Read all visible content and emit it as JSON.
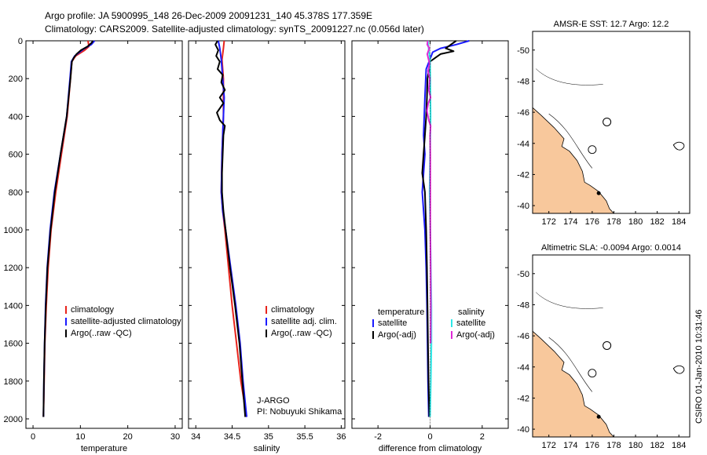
{
  "header": {
    "line1": "Argo profile: JA 5900995_148 26-Dec-2009 20091231_140 45.378S 177.359E",
    "line2": "Climatology: CARS2009. Satellite-adjusted climatology: synTS_20091227.nc (0.056d later)"
  },
  "colors": {
    "clim": "#e8241c",
    "sat": "#1a1aff",
    "argo": "#000000",
    "sat_diff": "#2ee8e8",
    "argo_diff": "#e02ad8"
  },
  "chart_data": [
    {
      "type": "line",
      "id": "temperature",
      "xlabel": "temperature",
      "xlim": [
        -1.5,
        31.5
      ],
      "ylim": [
        0,
        2050
      ],
      "xticks": [
        "0",
        "10",
        "20",
        "30"
      ],
      "xtick_values": [
        0,
        10,
        20,
        30
      ],
      "yticks": [
        "0",
        "200",
        "400",
        "600",
        "800",
        "1000",
        "1200",
        "1400",
        "1600",
        "1800",
        "2000"
      ],
      "ytick_values": [
        0,
        200,
        400,
        600,
        800,
        1000,
        1200,
        1400,
        1600,
        1800,
        2000
      ],
      "legend": [
        "climatology",
        "satellite-adjusted climatology",
        "Argo(..raw -QC)"
      ],
      "series": [
        {
          "name": "climatology",
          "color": "clim",
          "points": [
            [
              11.6,
              0
            ],
            [
              11.8,
              30
            ],
            [
              10.9,
              50
            ],
            [
              9.0,
              80
            ],
            [
              8.2,
              110
            ],
            [
              7.9,
              200
            ],
            [
              7.2,
              400
            ],
            [
              6.0,
              600
            ],
            [
              4.8,
              800
            ],
            [
              3.8,
              1000
            ],
            [
              3.2,
              1200
            ],
            [
              2.8,
              1400
            ],
            [
              2.5,
              1600
            ],
            [
              2.35,
              1800
            ],
            [
              2.2,
              1990
            ]
          ]
        },
        {
          "name": "satellite-adjusted climatology",
          "color": "sat",
          "points": [
            [
              13.0,
              0
            ],
            [
              12.3,
              20
            ],
            [
              10.6,
              45
            ],
            [
              8.8,
              80
            ],
            [
              8.1,
              110
            ],
            [
              7.8,
              200
            ],
            [
              7.1,
              400
            ],
            [
              5.8,
              600
            ],
            [
              4.5,
              800
            ],
            [
              3.6,
              1000
            ],
            [
              3.0,
              1200
            ],
            [
              2.65,
              1400
            ],
            [
              2.45,
              1600
            ],
            [
              2.3,
              1800
            ],
            [
              2.2,
              1990
            ]
          ]
        },
        {
          "name": "Argo(..raw -QC)",
          "color": "argo",
          "points": [
            [
              12.6,
              0
            ],
            [
              12.4,
              10
            ],
            [
              11.5,
              30
            ],
            [
              10.1,
              50
            ],
            [
              9.2,
              70
            ],
            [
              8.6,
              90
            ],
            [
              8.2,
              110
            ],
            [
              7.9,
              200
            ],
            [
              7.1,
              400
            ],
            [
              5.8,
              600
            ],
            [
              4.6,
              800
            ],
            [
              3.7,
              1000
            ],
            [
              3.05,
              1200
            ],
            [
              2.7,
              1400
            ],
            [
              2.45,
              1600
            ],
            [
              2.3,
              1800
            ],
            [
              2.2,
              1990
            ]
          ]
        }
      ]
    },
    {
      "type": "line",
      "id": "salinity",
      "xlabel": "salinity",
      "xlim": [
        33.9,
        36.05
      ],
      "ylim": [
        0,
        2050
      ],
      "xticks": [
        "34",
        "34.5",
        "35",
        "35.5",
        "36"
      ],
      "xtick_values": [
        34,
        34.5,
        35,
        35.5,
        36
      ],
      "legend": [
        "climatology",
        "satellite adj. clim.",
        "Argo(..raw -QC)"
      ],
      "annotation": [
        "J-ARGO",
        "PI: Nobuyuki Shikama"
      ],
      "series": [
        {
          "name": "climatology",
          "color": "clim",
          "points": [
            [
              34.39,
              0
            ],
            [
              34.38,
              40
            ],
            [
              34.36,
              100
            ],
            [
              34.38,
              200
            ],
            [
              34.38,
              300
            ],
            [
              34.38,
              400
            ],
            [
              34.37,
              500
            ],
            [
              34.36,
              600
            ],
            [
              34.35,
              800
            ],
            [
              34.37,
              900
            ],
            [
              34.4,
              1000
            ],
            [
              34.45,
              1200
            ],
            [
              34.5,
              1400
            ],
            [
              34.56,
              1600
            ],
            [
              34.62,
              1800
            ],
            [
              34.7,
              1990
            ]
          ]
        },
        {
          "name": "satellite adj. clim.",
          "color": "sat",
          "points": [
            [
              34.31,
              0
            ],
            [
              34.33,
              40
            ],
            [
              34.35,
              100
            ],
            [
              34.37,
              200
            ],
            [
              34.39,
              300
            ],
            [
              34.38,
              400
            ],
            [
              34.37,
              500
            ],
            [
              34.36,
              600
            ],
            [
              34.35,
              800
            ],
            [
              34.37,
              900
            ],
            [
              34.41,
              1000
            ],
            [
              34.48,
              1200
            ],
            [
              34.55,
              1400
            ],
            [
              34.61,
              1600
            ],
            [
              34.65,
              1800
            ],
            [
              34.7,
              1990
            ]
          ]
        },
        {
          "name": "Argo(..raw -QC)",
          "color": "argo",
          "points": [
            [
              34.3,
              0
            ],
            [
              34.27,
              20
            ],
            [
              34.31,
              50
            ],
            [
              34.28,
              80
            ],
            [
              34.33,
              110
            ],
            [
              34.3,
              150
            ],
            [
              34.37,
              180
            ],
            [
              34.35,
              220
            ],
            [
              34.4,
              260
            ],
            [
              34.33,
              300
            ],
            [
              34.38,
              330
            ],
            [
              34.29,
              380
            ],
            [
              34.33,
              420
            ],
            [
              34.4,
              450
            ],
            [
              34.38,
              500
            ],
            [
              34.37,
              600
            ],
            [
              34.36,
              700
            ],
            [
              34.36,
              800
            ],
            [
              34.38,
              900
            ],
            [
              34.41,
              1000
            ],
            [
              34.47,
              1200
            ],
            [
              34.54,
              1400
            ],
            [
              34.6,
              1600
            ],
            [
              34.64,
              1800
            ],
            [
              34.68,
              1990
            ]
          ]
        }
      ]
    },
    {
      "type": "line",
      "id": "difference",
      "xlabel": "difference from climatology",
      "xlim": [
        -3.0,
        3.0
      ],
      "ylim": [
        0,
        2050
      ],
      "xticks": [
        "-2",
        "0",
        "2"
      ],
      "xtick_values": [
        -2,
        0,
        2
      ],
      "legend_titles": [
        "temperature",
        "salinity"
      ],
      "legend": [
        "satellite",
        "Argo(-adj)",
        "satellite",
        "Argo(-adj)"
      ],
      "series": [
        {
          "name": "temperature satellite",
          "color": "sat",
          "points": [
            [
              1.5,
              0
            ],
            [
              1.0,
              20
            ],
            [
              0.4,
              40
            ],
            [
              0.1,
              60
            ],
            [
              -0.15,
              150
            ],
            [
              -0.2,
              300
            ],
            [
              -0.25,
              500
            ],
            [
              -0.2,
              600
            ],
            [
              -0.3,
              800
            ],
            [
              -0.2,
              1000
            ],
            [
              -0.15,
              1200
            ],
            [
              -0.12,
              1400
            ],
            [
              -0.1,
              1600
            ],
            [
              -0.08,
              1800
            ],
            [
              -0.05,
              1990
            ]
          ]
        },
        {
          "name": "temperature Argo(-adj)",
          "color": "argo",
          "points": [
            [
              1.0,
              0
            ],
            [
              0.8,
              20
            ],
            [
              0.6,
              40
            ],
            [
              0.9,
              55
            ],
            [
              0.4,
              70
            ],
            [
              0.2,
              90
            ],
            [
              0.0,
              110
            ],
            [
              -0.1,
              200
            ],
            [
              -0.12,
              300
            ],
            [
              -0.15,
              400
            ],
            [
              -0.2,
              500
            ],
            [
              -0.25,
              600
            ],
            [
              -0.3,
              700
            ],
            [
              -0.2,
              800
            ],
            [
              -0.15,
              1000
            ],
            [
              -0.12,
              1200
            ],
            [
              -0.1,
              1400
            ],
            [
              -0.08,
              1600
            ],
            [
              -0.06,
              1800
            ],
            [
              -0.03,
              1990
            ]
          ]
        },
        {
          "name": "salinity satellite",
          "color": "sat_diff",
          "points": [
            [
              -0.08,
              0
            ],
            [
              -0.05,
              50
            ],
            [
              0.0,
              100
            ],
            [
              0.01,
              200
            ],
            [
              0.02,
              400
            ],
            [
              0.0,
              600
            ],
            [
              -0.02,
              800
            ],
            [
              0.01,
              1000
            ],
            [
              0.03,
              1200
            ],
            [
              0.05,
              1400
            ],
            [
              0.05,
              1600
            ],
            [
              0.03,
              1800
            ],
            [
              0.0,
              1990
            ]
          ]
        },
        {
          "name": "salinity Argo(-adj)",
          "color": "argo_diff",
          "points": [
            [
              -0.09,
              0
            ],
            [
              -0.11,
              20
            ],
            [
              -0.03,
              40
            ],
            [
              -0.11,
              70
            ],
            [
              -0.02,
              120
            ],
            [
              -0.08,
              160
            ],
            [
              -0.01,
              200
            ],
            [
              -0.05,
              260
            ],
            [
              0.02,
              300
            ],
            [
              -0.07,
              330
            ],
            [
              -0.12,
              370
            ],
            [
              -0.05,
              420
            ],
            [
              0.02,
              450
            ],
            [
              0.0,
              500
            ],
            [
              0.01,
              600
            ],
            [
              0.01,
              800
            ],
            [
              0.01,
              1000
            ],
            [
              0.02,
              1200
            ],
            [
              0.03,
              1400
            ],
            [
              0.02,
              1600
            ]
          ]
        }
      ]
    },
    {
      "type": "heatmap",
      "id": "sst_map",
      "title": "AMSR-E SST: 12.7  Argo: 12.2",
      "xticks": [
        "172",
        "174",
        "176",
        "178",
        "180",
        "182",
        "184"
      ],
      "xtick_values": [
        172,
        174,
        176,
        178,
        180,
        182,
        184
      ],
      "yticks": [
        "-40",
        "-42",
        "-44",
        "-46",
        "-48",
        "-50"
      ],
      "ytick_values": [
        -40,
        -42,
        -44,
        -46,
        -48,
        -50
      ],
      "xlim": [
        170.5,
        185.0
      ],
      "ylim": [
        -51.2,
        -39.5
      ],
      "float_position": [
        177.359,
        -45.378
      ],
      "circle_position": [
        176.0,
        -43.6
      ],
      "land_color": "#f8c89c",
      "palette": [
        "#1850d8",
        "#1890f0",
        "#20c8e0",
        "#48e098",
        "#98e828",
        "#e8e818",
        "#f0a818",
        "#e85818",
        "#c01808"
      ],
      "sst_bands": [
        {
          "lat_from": -39.5,
          "lat_to": -41.5,
          "color_index": 8
        },
        {
          "lat_from": -41.5,
          "lat_to": -42.5,
          "color_index": 7
        },
        {
          "lat_from": -42.5,
          "lat_to": -43.5,
          "color_index": 6
        },
        {
          "lat_from": -43.5,
          "lat_to": -44.5,
          "color_index": 5
        },
        {
          "lat_from": -44.5,
          "lat_to": -45.8,
          "color_index": 4
        },
        {
          "lat_from": -45.8,
          "lat_to": -47.2,
          "color_index": 3
        },
        {
          "lat_from": -47.2,
          "lat_to": -48.6,
          "color_index": 2
        },
        {
          "lat_from": -48.6,
          "lat_to": -49.8,
          "color_index": 1
        },
        {
          "lat_from": -49.8,
          "lat_to": -51.2,
          "color_index": 0
        }
      ]
    },
    {
      "type": "heatmap",
      "id": "sla_map",
      "title": "Altimetric SLA: -0.0094  Argo: 0.0014",
      "xticks": [
        "172",
        "174",
        "176",
        "178",
        "180",
        "182",
        "184"
      ],
      "xtick_values": [
        172,
        174,
        176,
        178,
        180,
        182,
        184
      ],
      "yticks": [
        "-40",
        "-42",
        "-44",
        "-46",
        "-48",
        "-50"
      ],
      "ytick_values": [
        -40,
        -42,
        -44,
        -46,
        -48,
        -50
      ],
      "xlim": [
        170.5,
        185.0
      ],
      "ylim": [
        -51.2,
        -39.5
      ],
      "float_position": [
        177.359,
        -45.378
      ],
      "circle_position": [
        176.0,
        -43.6
      ],
      "land_color": "#f8c89c",
      "palette": [
        "#48c848",
        "#68d850",
        "#90e040",
        "#b0e838"
      ]
    }
  ],
  "footer": {
    "credit": "CSIRO 01-Jan-2010 10:31:46"
  }
}
